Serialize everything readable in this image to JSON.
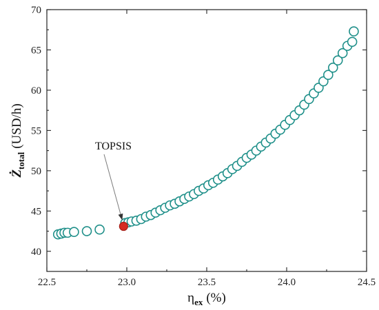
{
  "chart_data": {
    "type": "scatter",
    "xlabel": {
      "symbol": "η",
      "sub": "ex",
      "unit": "(%)"
    },
    "ylabel": {
      "symbol": "Ż",
      "sub": "total",
      "unit": "(USD/h)"
    },
    "xlim": [
      22.5,
      24.5
    ],
    "ylim": [
      37.5,
      70
    ],
    "xticks": [
      22.5,
      23.0,
      23.5,
      24.0,
      24.5
    ],
    "xtick_labels": [
      "22.5",
      "23.0",
      "23.5",
      "24.0",
      "24.5"
    ],
    "yticks": [
      40,
      45,
      50,
      55,
      60,
      65,
      70
    ],
    "ytick_labels": [
      "40",
      "45",
      "50",
      "55",
      "60",
      "65",
      "70"
    ],
    "grid": false,
    "colors": {
      "marker_edge": "#1e8f89",
      "highlight": "#d62a21",
      "axis": "#222222"
    },
    "series": [
      {
        "marker": "open-circle",
        "points": [
          [
            22.57,
            42.1
          ],
          [
            22.59,
            42.2
          ],
          [
            22.61,
            42.3
          ],
          [
            22.63,
            42.3
          ],
          [
            22.67,
            42.4
          ],
          [
            22.75,
            42.5
          ],
          [
            22.83,
            42.7
          ],
          [
            22.99,
            43.5
          ],
          [
            23.01,
            43.6
          ],
          [
            23.03,
            43.7
          ],
          [
            23.06,
            43.8
          ],
          [
            23.09,
            44.0
          ],
          [
            23.12,
            44.3
          ],
          [
            23.15,
            44.5
          ],
          [
            23.18,
            44.8
          ],
          [
            23.21,
            45.1
          ],
          [
            23.24,
            45.4
          ],
          [
            23.27,
            45.7
          ],
          [
            23.3,
            45.9
          ],
          [
            23.33,
            46.2
          ],
          [
            23.36,
            46.5
          ],
          [
            23.39,
            46.8
          ],
          [
            23.42,
            47.1
          ],
          [
            23.45,
            47.5
          ],
          [
            23.48,
            47.8
          ],
          [
            23.51,
            48.2
          ],
          [
            23.54,
            48.5
          ],
          [
            23.57,
            48.9
          ],
          [
            23.6,
            49.3
          ],
          [
            23.63,
            49.7
          ],
          [
            23.66,
            50.2
          ],
          [
            23.69,
            50.6
          ],
          [
            23.72,
            51.1
          ],
          [
            23.75,
            51.6
          ],
          [
            23.78,
            52.0
          ],
          [
            23.81,
            52.5
          ],
          [
            23.84,
            53.0
          ],
          [
            23.87,
            53.5
          ],
          [
            23.9,
            54.0
          ],
          [
            23.93,
            54.6
          ],
          [
            23.96,
            55.1
          ],
          [
            23.99,
            55.7
          ],
          [
            24.02,
            56.3
          ],
          [
            24.05,
            56.9
          ],
          [
            24.08,
            57.5
          ],
          [
            24.11,
            58.2
          ],
          [
            24.14,
            58.9
          ],
          [
            24.17,
            59.6
          ],
          [
            24.2,
            60.3
          ],
          [
            24.23,
            61.1
          ],
          [
            24.26,
            61.9
          ],
          [
            24.29,
            62.8
          ],
          [
            24.32,
            63.7
          ],
          [
            24.35,
            64.6
          ],
          [
            24.38,
            65.5
          ],
          [
            24.41,
            66.0
          ],
          [
            24.42,
            67.3
          ]
        ]
      }
    ],
    "highlight_point": {
      "x": 22.98,
      "y": 43.1,
      "label": "TOPSIS"
    }
  }
}
